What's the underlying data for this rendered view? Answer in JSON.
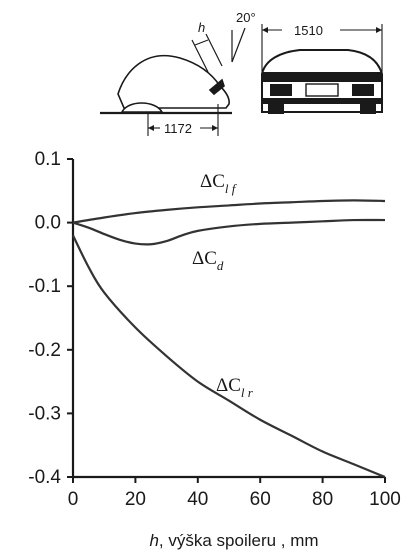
{
  "diagram": {
    "dimension_h": "h",
    "dimension_angle": "20°",
    "dimension_width": "1510",
    "dimension_length": "1172"
  },
  "chart_data": {
    "type": "line",
    "xlabel_var": "h",
    "xlabel_rest": ", výška spoileru , mm",
    "ylabel": "",
    "xlim": [
      0,
      100
    ],
    "ylim": [
      -0.4,
      0.1
    ],
    "x_ticks": [
      0,
      20,
      40,
      60,
      80,
      100
    ],
    "x_tick_labels": [
      "0",
      "20",
      "40",
      "60",
      "80",
      "100"
    ],
    "y_ticks": [
      0.1,
      0.0,
      -0.1,
      -0.2,
      -0.3,
      -0.4
    ],
    "y_tick_labels": [
      "0.1",
      "0.0",
      "-0.1",
      "-0.2",
      "-0.3",
      "-0.4"
    ],
    "grid": false,
    "series": [
      {
        "label_main": "ΔC",
        "label_sub": "l f",
        "x": [
          0,
          10,
          20,
          30,
          40,
          50,
          60,
          70,
          80,
          90,
          100
        ],
        "values": [
          0.0,
          0.008,
          0.015,
          0.02,
          0.024,
          0.027,
          0.03,
          0.032,
          0.034,
          0.035,
          0.034
        ]
      },
      {
        "label_main": "ΔC",
        "label_sub": "d",
        "x": [
          0,
          5,
          10,
          15,
          20,
          25,
          30,
          35,
          40,
          50,
          60,
          70,
          80,
          90,
          100
        ],
        "values": [
          0.0,
          -0.008,
          -0.018,
          -0.027,
          -0.033,
          -0.034,
          -0.029,
          -0.02,
          -0.013,
          -0.006,
          -0.002,
          0.0,
          0.002,
          0.004,
          0.004
        ]
      },
      {
        "label_main": "ΔC",
        "label_sub": "l r",
        "x": [
          0,
          5,
          10,
          20,
          30,
          40,
          50,
          60,
          70,
          80,
          90,
          100
        ],
        "values": [
          -0.02,
          -0.07,
          -0.11,
          -0.165,
          -0.21,
          -0.25,
          -0.28,
          -0.31,
          -0.335,
          -0.36,
          -0.38,
          -0.4
        ]
      }
    ]
  }
}
